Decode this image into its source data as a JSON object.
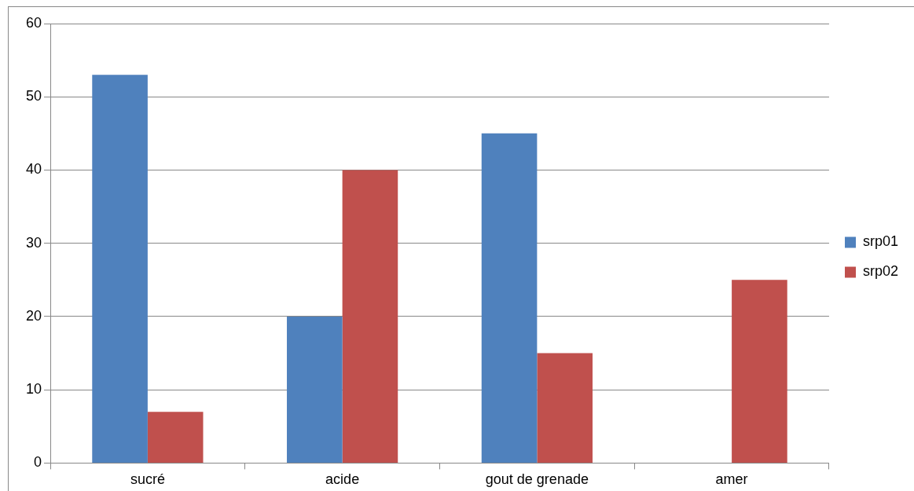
{
  "chart_data": {
    "type": "bar",
    "categories": [
      "sucré",
      "acide",
      "gout de grenade",
      "amer"
    ],
    "series": [
      {
        "name": "srp01",
        "color": "#4f81bd",
        "values": [
          53,
          20,
          45,
          0
        ]
      },
      {
        "name": "srp02",
        "color": "#c0504d",
        "values": [
          7,
          40,
          15,
          25
        ]
      }
    ],
    "ylim": [
      0,
      60
    ],
    "yticks": [
      0,
      10,
      20,
      30,
      40,
      50,
      60
    ],
    "grid": "y",
    "legend": "right"
  }
}
